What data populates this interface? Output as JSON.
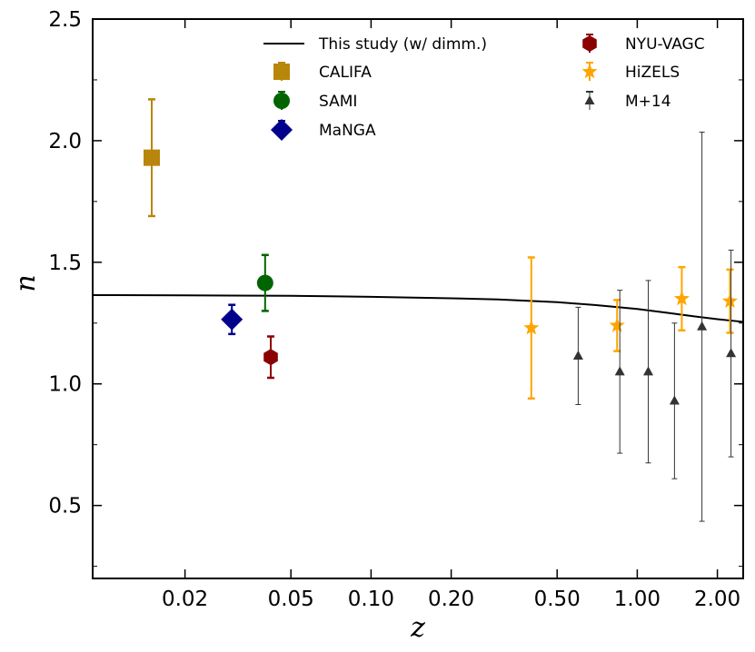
{
  "chart_data": {
    "type": "scatter",
    "title": "",
    "xlabel": "z",
    "ylabel": "n",
    "xscale": "log",
    "xlim": [
      0.009,
      2.5
    ],
    "ylim": [
      0.2,
      2.5
    ],
    "xticks": [
      {
        "value": 0.02,
        "label": "0.02"
      },
      {
        "value": 0.05,
        "label": "0.05"
      },
      {
        "value": 0.1,
        "label": "0.10"
      },
      {
        "value": 0.2,
        "label": "0.20"
      },
      {
        "value": 0.5,
        "label": "0.50"
      },
      {
        "value": 1.0,
        "label": "1.00"
      },
      {
        "value": 2.0,
        "label": "2.00"
      }
    ],
    "yticks": [
      {
        "value": 0.5,
        "label": "0.5"
      },
      {
        "value": 1.0,
        "label": "1.0"
      },
      {
        "value": 1.5,
        "label": "1.5"
      },
      {
        "value": 2.0,
        "label": "2.0"
      },
      {
        "value": 2.5,
        "label": "2.5"
      }
    ],
    "legend_position": "top",
    "curve": {
      "name": "This study (w/ dimm.)",
      "color": "#000000",
      "x": [
        0.009,
        0.02,
        0.05,
        0.1,
        0.2,
        0.3,
        0.5,
        0.7,
        1.0,
        1.3,
        1.6,
        2.0,
        2.5
      ],
      "y": [
        1.365,
        1.364,
        1.362,
        1.358,
        1.352,
        1.347,
        1.336,
        1.324,
        1.308,
        1.292,
        1.279,
        1.266,
        1.255
      ]
    },
    "series": [
      {
        "name": "CALIFA",
        "color": "#b8860b",
        "marker": "square",
        "points": [
          {
            "x": 0.015,
            "y": 1.93,
            "yerr_low": 0.24,
            "yerr_high": 0.24
          }
        ]
      },
      {
        "name": "SAMI",
        "color": "#006400",
        "marker": "circle",
        "points": [
          {
            "x": 0.04,
            "y": 1.415,
            "yerr_low": 0.115,
            "yerr_high": 0.115
          }
        ]
      },
      {
        "name": "MaNGA",
        "color": "#00008b",
        "marker": "diamond",
        "points": [
          {
            "x": 0.03,
            "y": 1.265,
            "yerr_low": 0.06,
            "yerr_high": 0.06
          }
        ]
      },
      {
        "name": "NYU-VAGC",
        "color": "#8b0000",
        "marker": "hexagon",
        "points": [
          {
            "x": 0.042,
            "y": 1.11,
            "yerr_low": 0.085,
            "yerr_high": 0.085
          }
        ]
      },
      {
        "name": "HiZELS",
        "color": "#ffa500",
        "marker": "star",
        "points": [
          {
            "x": 0.4,
            "y": 1.23,
            "yerr_low": 0.29,
            "yerr_high": 0.29
          },
          {
            "x": 0.84,
            "y": 1.24,
            "yerr_low": 0.105,
            "yerr_high": 0.105
          },
          {
            "x": 1.47,
            "y": 1.35,
            "yerr_low": 0.13,
            "yerr_high": 0.13
          },
          {
            "x": 2.23,
            "y": 1.34,
            "yerr_low": 0.13,
            "yerr_high": 0.13
          }
        ]
      },
      {
        "name": "M+14",
        "color": "#333333",
        "marker": "triangle",
        "points": [
          {
            "x": 0.6,
            "y": 1.115,
            "yerr_low": 0.2,
            "yerr_high": 0.2
          },
          {
            "x": 0.86,
            "y": 1.05,
            "yerr_low": 0.335,
            "yerr_high": 0.335
          },
          {
            "x": 1.1,
            "y": 1.05,
            "yerr_low": 0.375,
            "yerr_high": 0.375
          },
          {
            "x": 1.38,
            "y": 0.93,
            "yerr_low": 0.32,
            "yerr_high": 0.32
          },
          {
            "x": 1.75,
            "y": 1.235,
            "yerr_low": 0.8,
            "yerr_high": 0.8
          },
          {
            "x": 2.25,
            "y": 1.125,
            "yerr_low": 0.425,
            "yerr_high": 0.425
          }
        ]
      }
    ],
    "legend": [
      {
        "label": "This study (w/ dimm.)",
        "kind": "line",
        "color": "#000000"
      },
      {
        "label": "CALIFA",
        "kind": "square",
        "color": "#b8860b"
      },
      {
        "label": "SAMI",
        "kind": "circle",
        "color": "#006400"
      },
      {
        "label": "MaNGA",
        "kind": "diamond",
        "color": "#00008b"
      },
      {
        "label": "NYU-VAGC",
        "kind": "hexagon",
        "color": "#8b0000"
      },
      {
        "label": "HiZELS",
        "kind": "star",
        "color": "#ffa500"
      },
      {
        "label": "M+14",
        "kind": "triangle",
        "color": "#333333"
      }
    ]
  }
}
